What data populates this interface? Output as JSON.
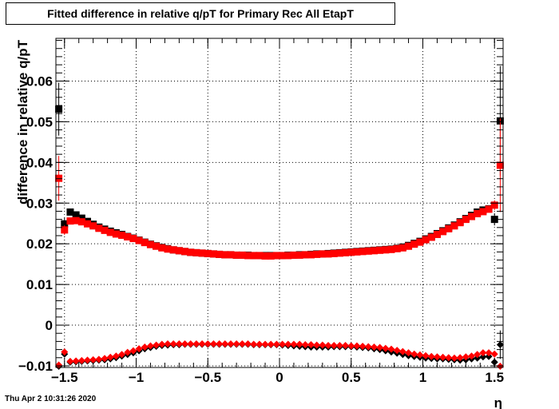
{
  "title": "Fitted difference in relative q/pT for Primary Rec All EtapT",
  "date_stamp": "Thu Apr  2 10:31:26 2020",
  "chart_data": {
    "type": "scatter",
    "title": "Fitted difference in relative q/pT for Primary Rec All EtapT",
    "xlabel": "η",
    "ylabel": "difference in relative q/pT",
    "xlim": [
      -1.56,
      1.56
    ],
    "ylim": [
      -0.0104,
      0.0705
    ],
    "grid": true,
    "x_ticks": [
      -1.5,
      -1,
      -0.5,
      0,
      0.5,
      1,
      1.5
    ],
    "x_tick_labels": [
      "−1.5",
      "−1",
      "−0.5",
      "0",
      "0.5",
      "1",
      "1.5"
    ],
    "y_ticks": [
      -0.01,
      0,
      0.01,
      0.02,
      0.03,
      0.04,
      0.05,
      0.06
    ],
    "y_tick_labels": [
      "−0.01",
      "0",
      "0.01",
      "0.02",
      "0.03",
      "0.04",
      "0.05",
      "0.06"
    ],
    "series": [
      {
        "color": "#000000",
        "marker": "square",
        "x": [
          -1.54,
          -1.5,
          -1.46,
          -1.42,
          -1.38,
          -1.34,
          -1.3,
          -1.26,
          -1.22,
          -1.18,
          -1.14,
          -1.1,
          -1.06,
          -1.02,
          -0.98,
          -0.94,
          -0.9,
          -0.86,
          -0.82,
          -0.78,
          -0.74,
          -0.7,
          -0.66,
          -0.62,
          -0.58,
          -0.54,
          -0.5,
          -0.46,
          -0.42,
          -0.38,
          -0.34,
          -0.3,
          -0.26,
          -0.22,
          -0.18,
          -0.14,
          -0.1,
          -0.06,
          -0.02,
          0.02,
          0.06,
          0.1,
          0.14,
          0.18,
          0.22,
          0.26,
          0.3,
          0.34,
          0.38,
          0.42,
          0.46,
          0.5,
          0.54,
          0.58,
          0.62,
          0.66,
          0.7,
          0.74,
          0.78,
          0.82,
          0.86,
          0.9,
          0.94,
          0.98,
          1.02,
          1.06,
          1.1,
          1.14,
          1.18,
          1.22,
          1.26,
          1.3,
          1.34,
          1.38,
          1.42,
          1.46,
          1.5,
          1.54
        ],
        "y": [
          0.0531,
          0.0249,
          0.0278,
          0.0271,
          0.0263,
          0.0255,
          0.0248,
          0.0241,
          0.0236,
          0.0231,
          0.0227,
          0.0223,
          0.0218,
          0.0214,
          0.0209,
          0.0204,
          0.0199,
          0.0195,
          0.0191,
          0.0188,
          0.0185,
          0.0183,
          0.0181,
          0.0179,
          0.0178,
          0.0177,
          0.0176,
          0.0175,
          0.0174,
          0.0173,
          0.0173,
          0.0172,
          0.0172,
          0.0172,
          0.0171,
          0.0171,
          0.0171,
          0.0171,
          0.0171,
          0.0171,
          0.0172,
          0.0172,
          0.0173,
          0.0173,
          0.0174,
          0.0175,
          0.0175,
          0.0176,
          0.0177,
          0.0178,
          0.0179,
          0.018,
          0.0181,
          0.0182,
          0.0183,
          0.0184,
          0.0185,
          0.0186,
          0.0187,
          0.0189,
          0.0192,
          0.0196,
          0.0201,
          0.0206,
          0.0212,
          0.0218,
          0.0225,
          0.0232,
          0.0239,
          0.0246,
          0.0254,
          0.0262,
          0.027,
          0.0278,
          0.0283,
          0.0286,
          0.026,
          0.0502
        ],
        "err": [
          0.0065,
          0.0015,
          0.0005,
          0.0003,
          0.0003,
          0.0003,
          0.0003,
          0.0003,
          0.0003,
          0.0003,
          0.0003,
          0.0003,
          0.0003,
          0.0003,
          0.0003,
          0.0003,
          0.0003,
          0.0003,
          0.0003,
          0.0003,
          0.0003,
          0.0003,
          0.0003,
          0.0003,
          0.0003,
          0.0003,
          0.0003,
          0.0003,
          0.0003,
          0.0003,
          0.0003,
          0.0003,
          0.0003,
          0.0003,
          0.0003,
          0.0003,
          0.0003,
          0.0003,
          0.0003,
          0.0003,
          0.0003,
          0.0003,
          0.0003,
          0.0003,
          0.0003,
          0.0003,
          0.0003,
          0.0003,
          0.0003,
          0.0003,
          0.0003,
          0.0003,
          0.0003,
          0.0003,
          0.0003,
          0.0003,
          0.0003,
          0.0003,
          0.0003,
          0.0003,
          0.0003,
          0.0003,
          0.0003,
          0.0003,
          0.0003,
          0.0003,
          0.0003,
          0.0003,
          0.0003,
          0.0003,
          0.0003,
          0.0003,
          0.0003,
          0.0003,
          0.0005,
          0.0008,
          0.0015,
          0.0135
        ]
      },
      {
        "color": "#ff0000",
        "marker": "square",
        "x": [
          -1.54,
          -1.5,
          -1.46,
          -1.42,
          -1.38,
          -1.34,
          -1.3,
          -1.26,
          -1.22,
          -1.18,
          -1.14,
          -1.1,
          -1.06,
          -1.02,
          -0.98,
          -0.94,
          -0.9,
          -0.86,
          -0.82,
          -0.78,
          -0.74,
          -0.7,
          -0.66,
          -0.62,
          -0.58,
          -0.54,
          -0.5,
          -0.46,
          -0.42,
          -0.38,
          -0.34,
          -0.3,
          -0.26,
          -0.22,
          -0.18,
          -0.14,
          -0.1,
          -0.06,
          -0.02,
          0.02,
          0.06,
          0.1,
          0.14,
          0.18,
          0.22,
          0.26,
          0.3,
          0.34,
          0.38,
          0.42,
          0.46,
          0.5,
          0.54,
          0.58,
          0.62,
          0.66,
          0.7,
          0.74,
          0.78,
          0.82,
          0.86,
          0.9,
          0.94,
          0.98,
          1.02,
          1.06,
          1.1,
          1.14,
          1.18,
          1.22,
          1.26,
          1.3,
          1.34,
          1.38,
          1.42,
          1.46,
          1.5,
          1.54
        ],
        "y": [
          0.0361,
          0.0234,
          0.0256,
          0.0257,
          0.0254,
          0.0249,
          0.0244,
          0.0238,
          0.0233,
          0.0228,
          0.0224,
          0.0221,
          0.0217,
          0.0213,
          0.0208,
          0.0203,
          0.0198,
          0.0194,
          0.019,
          0.0187,
          0.0185,
          0.0183,
          0.0181,
          0.0179,
          0.0178,
          0.0177,
          0.0176,
          0.0175,
          0.0174,
          0.0173,
          0.0173,
          0.0172,
          0.0172,
          0.0171,
          0.0171,
          0.0171,
          0.017,
          0.017,
          0.0171,
          0.0171,
          0.0171,
          0.0172,
          0.0172,
          0.0173,
          0.0173,
          0.0174,
          0.0175,
          0.0175,
          0.0176,
          0.0177,
          0.0178,
          0.0179,
          0.018,
          0.0181,
          0.0182,
          0.0183,
          0.0184,
          0.0185,
          0.0186,
          0.0188,
          0.019,
          0.0194,
          0.0199,
          0.0204,
          0.021,
          0.0216,
          0.0223,
          0.023,
          0.0237,
          0.0244,
          0.0252,
          0.026,
          0.0267,
          0.0274,
          0.0279,
          0.0285,
          0.0295,
          0.0393
        ],
        "err": [
          0.0055,
          0.0012,
          0.0005,
          0.0003,
          0.0003,
          0.0003,
          0.0003,
          0.0003,
          0.0003,
          0.0003,
          0.0003,
          0.0003,
          0.0003,
          0.0003,
          0.0003,
          0.0003,
          0.0003,
          0.0003,
          0.0003,
          0.0003,
          0.0003,
          0.0003,
          0.0003,
          0.0003,
          0.0003,
          0.0003,
          0.0003,
          0.0003,
          0.0003,
          0.0003,
          0.0003,
          0.0003,
          0.0003,
          0.0003,
          0.0003,
          0.0003,
          0.0003,
          0.0003,
          0.0003,
          0.0003,
          0.0003,
          0.0003,
          0.0003,
          0.0003,
          0.0003,
          0.0003,
          0.0003,
          0.0003,
          0.0003,
          0.0003,
          0.0003,
          0.0003,
          0.0003,
          0.0003,
          0.0003,
          0.0003,
          0.0003,
          0.0003,
          0.0003,
          0.0003,
          0.0003,
          0.0003,
          0.0003,
          0.0003,
          0.0003,
          0.0003,
          0.0003,
          0.0003,
          0.0003,
          0.0003,
          0.0003,
          0.0003,
          0.0003,
          0.0003,
          0.0005,
          0.0008,
          0.0012,
          0.0115
        ]
      },
      {
        "color": "#000000",
        "marker": "diamond",
        "x": [
          -1.54,
          -1.5,
          -1.46,
          -1.42,
          -1.38,
          -1.34,
          -1.3,
          -1.26,
          -1.22,
          -1.18,
          -1.14,
          -1.1,
          -1.06,
          -1.02,
          -0.98,
          -0.94,
          -0.9,
          -0.86,
          -0.82,
          -0.78,
          -0.74,
          -0.7,
          -0.66,
          -0.62,
          -0.58,
          -0.54,
          -0.5,
          -0.46,
          -0.42,
          -0.38,
          -0.34,
          -0.3,
          -0.26,
          -0.22,
          -0.18,
          -0.14,
          -0.1,
          -0.06,
          -0.02,
          0.02,
          0.06,
          0.1,
          0.14,
          0.18,
          0.22,
          0.26,
          0.3,
          0.34,
          0.38,
          0.42,
          0.46,
          0.5,
          0.54,
          0.58,
          0.62,
          0.66,
          0.7,
          0.74,
          0.78,
          0.82,
          0.86,
          0.9,
          0.94,
          0.98,
          1.02,
          1.06,
          1.1,
          1.14,
          1.18,
          1.22,
          1.26,
          1.3,
          1.34,
          1.38,
          1.42,
          1.46,
          1.5,
          1.54
        ],
        "y": [
          -0.0101,
          -0.0071,
          -0.0091,
          -0.009,
          -0.0089,
          -0.0088,
          -0.0087,
          -0.0086,
          -0.0085,
          -0.0083,
          -0.008,
          -0.0076,
          -0.0072,
          -0.0068,
          -0.0063,
          -0.0058,
          -0.0055,
          -0.0052,
          -0.005,
          -0.0049,
          -0.0048,
          -0.0048,
          -0.0047,
          -0.0047,
          -0.0047,
          -0.0047,
          -0.0047,
          -0.0047,
          -0.0047,
          -0.0047,
          -0.0047,
          -0.0047,
          -0.0047,
          -0.0047,
          -0.0048,
          -0.0048,
          -0.0048,
          -0.0048,
          -0.0048,
          -0.0049,
          -0.005,
          -0.0051,
          -0.0052,
          -0.0053,
          -0.0054,
          -0.0054,
          -0.0054,
          -0.0054,
          -0.0053,
          -0.0053,
          -0.0053,
          -0.0053,
          -0.0054,
          -0.0055,
          -0.0056,
          -0.0058,
          -0.006,
          -0.0063,
          -0.0066,
          -0.0069,
          -0.0072,
          -0.0075,
          -0.0077,
          -0.0079,
          -0.0081,
          -0.0082,
          -0.0083,
          -0.0083,
          -0.0084,
          -0.0085,
          -0.0086,
          -0.0085,
          -0.0083,
          -0.0081,
          -0.0078,
          -0.0077,
          -0.0091,
          -0.0048
        ],
        "err": [
          0.0008,
          0.0005,
          0.0003,
          0.0003,
          0.0003,
          0.0003,
          0.0003,
          0.0003,
          0.0003,
          0.0003,
          0.0003,
          0.0003,
          0.0003,
          0.0003,
          0.0003,
          0.0003,
          0.0003,
          0.0003,
          0.0003,
          0.0003,
          0.0003,
          0.0003,
          0.0003,
          0.0003,
          0.0003,
          0.0003,
          0.0003,
          0.0003,
          0.0003,
          0.0003,
          0.0003,
          0.0003,
          0.0003,
          0.0003,
          0.0003,
          0.0003,
          0.0003,
          0.0003,
          0.0003,
          0.0003,
          0.0003,
          0.0003,
          0.0003,
          0.0003,
          0.0003,
          0.0003,
          0.0003,
          0.0003,
          0.0003,
          0.0003,
          0.0003,
          0.0003,
          0.0003,
          0.0003,
          0.0003,
          0.0003,
          0.0003,
          0.0003,
          0.0003,
          0.0003,
          0.0003,
          0.0003,
          0.0003,
          0.0003,
          0.0003,
          0.0003,
          0.0003,
          0.0003,
          0.0003,
          0.0003,
          0.0003,
          0.0003,
          0.0003,
          0.0003,
          0.0003,
          0.0003,
          0.0005,
          0.0035
        ]
      },
      {
        "color": "#ff0000",
        "marker": "diamond",
        "x": [
          -1.54,
          -1.5,
          -1.46,
          -1.42,
          -1.38,
          -1.34,
          -1.3,
          -1.26,
          -1.22,
          -1.18,
          -1.14,
          -1.1,
          -1.06,
          -1.02,
          -0.98,
          -0.94,
          -0.9,
          -0.86,
          -0.82,
          -0.78,
          -0.74,
          -0.7,
          -0.66,
          -0.62,
          -0.58,
          -0.54,
          -0.5,
          -0.46,
          -0.42,
          -0.38,
          -0.34,
          -0.3,
          -0.26,
          -0.22,
          -0.18,
          -0.14,
          -0.1,
          -0.06,
          -0.02,
          0.02,
          0.06,
          0.1,
          0.14,
          0.18,
          0.22,
          0.26,
          0.3,
          0.34,
          0.38,
          0.42,
          0.46,
          0.5,
          0.54,
          0.58,
          0.62,
          0.66,
          0.7,
          0.74,
          0.78,
          0.82,
          0.86,
          0.9,
          0.94,
          0.98,
          1.02,
          1.06,
          1.1,
          1.14,
          1.18,
          1.22,
          1.26,
          1.3,
          1.34,
          1.38,
          1.42,
          1.46,
          1.5,
          1.54
        ],
        "y": [
          -0.0098,
          -0.0066,
          -0.0089,
          -0.0088,
          -0.0087,
          -0.0086,
          -0.0085,
          -0.0084,
          -0.0082,
          -0.0079,
          -0.0076,
          -0.0072,
          -0.0067,
          -0.0063,
          -0.0058,
          -0.0054,
          -0.0051,
          -0.0049,
          -0.0047,
          -0.0046,
          -0.0046,
          -0.0046,
          -0.0046,
          -0.0046,
          -0.0046,
          -0.0046,
          -0.0046,
          -0.0046,
          -0.0046,
          -0.0046,
          -0.0046,
          -0.0046,
          -0.0046,
          -0.0046,
          -0.0047,
          -0.0047,
          -0.0047,
          -0.0047,
          -0.0047,
          -0.0047,
          -0.0047,
          -0.0047,
          -0.0047,
          -0.0048,
          -0.0048,
          -0.0049,
          -0.0049,
          -0.005,
          -0.005,
          -0.005,
          -0.005,
          -0.0051,
          -0.0051,
          -0.0052,
          -0.0053,
          -0.0054,
          -0.0055,
          -0.0057,
          -0.0059,
          -0.0062,
          -0.0065,
          -0.0068,
          -0.0071,
          -0.0073,
          -0.0075,
          -0.0077,
          -0.0078,
          -0.0079,
          -0.008,
          -0.0081,
          -0.008,
          -0.0078,
          -0.0076,
          -0.0072,
          -0.0068,
          -0.0068,
          -0.0071,
          -0.0101
        ],
        "err": [
          0.0008,
          0.0005,
          0.0003,
          0.0003,
          0.0003,
          0.0003,
          0.0003,
          0.0003,
          0.0003,
          0.0003,
          0.0003,
          0.0003,
          0.0003,
          0.0003,
          0.0003,
          0.0003,
          0.0003,
          0.0003,
          0.0003,
          0.0003,
          0.0003,
          0.0003,
          0.0003,
          0.0003,
          0.0003,
          0.0003,
          0.0003,
          0.0003,
          0.0003,
          0.0003,
          0.0003,
          0.0003,
          0.0003,
          0.0003,
          0.0003,
          0.0003,
          0.0003,
          0.0003,
          0.0003,
          0.0003,
          0.0003,
          0.0003,
          0.0003,
          0.0003,
          0.0003,
          0.0003,
          0.0003,
          0.0003,
          0.0003,
          0.0003,
          0.0003,
          0.0003,
          0.0003,
          0.0003,
          0.0003,
          0.0003,
          0.0003,
          0.0003,
          0.0003,
          0.0003,
          0.0003,
          0.0003,
          0.0003,
          0.0003,
          0.0003,
          0.0003,
          0.0003,
          0.0003,
          0.0003,
          0.0003,
          0.0003,
          0.0003,
          0.0003,
          0.0003,
          0.0003,
          0.0003,
          0.0005,
          0.0008
        ]
      }
    ]
  }
}
